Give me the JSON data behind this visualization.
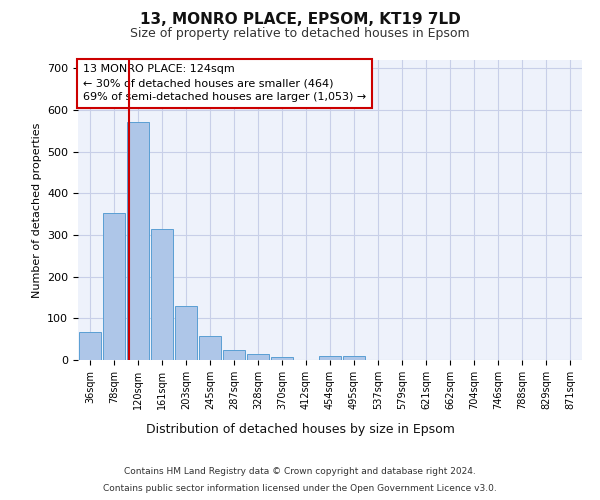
{
  "title1": "13, MONRO PLACE, EPSOM, KT19 7LD",
  "title2": "Size of property relative to detached houses in Epsom",
  "xlabel": "Distribution of detached houses by size in Epsom",
  "ylabel": "Number of detached properties",
  "bar_labels": [
    "36sqm",
    "78sqm",
    "120sqm",
    "161sqm",
    "203sqm",
    "245sqm",
    "287sqm",
    "328sqm",
    "370sqm",
    "412sqm",
    "454sqm",
    "495sqm",
    "537sqm",
    "579sqm",
    "621sqm",
    "662sqm",
    "704sqm",
    "746sqm",
    "788sqm",
    "829sqm",
    "871sqm"
  ],
  "bar_values": [
    68,
    352,
    572,
    315,
    130,
    57,
    25,
    15,
    8,
    0,
    10,
    10,
    0,
    0,
    0,
    0,
    0,
    0,
    0,
    0,
    0
  ],
  "bar_color": "#aec6e8",
  "bar_edge_color": "#5a9fd4",
  "annotation_line1": "13 MONRO PLACE: 124sqm",
  "annotation_line2": "← 30% of detached houses are smaller (464)",
  "annotation_line3": "69% of semi-detached houses are larger (1,053) →",
  "vline_x": 1.62,
  "vline_color": "#cc0000",
  "box_color": "#cc0000",
  "ylim": [
    0,
    720
  ],
  "yticks": [
    0,
    100,
    200,
    300,
    400,
    500,
    600,
    700
  ],
  "footer1": "Contains HM Land Registry data © Crown copyright and database right 2024.",
  "footer2": "Contains public sector information licensed under the Open Government Licence v3.0.",
  "bg_color": "#eef2fb",
  "grid_color": "#c8cfe8",
  "fig_bg": "#ffffff"
}
